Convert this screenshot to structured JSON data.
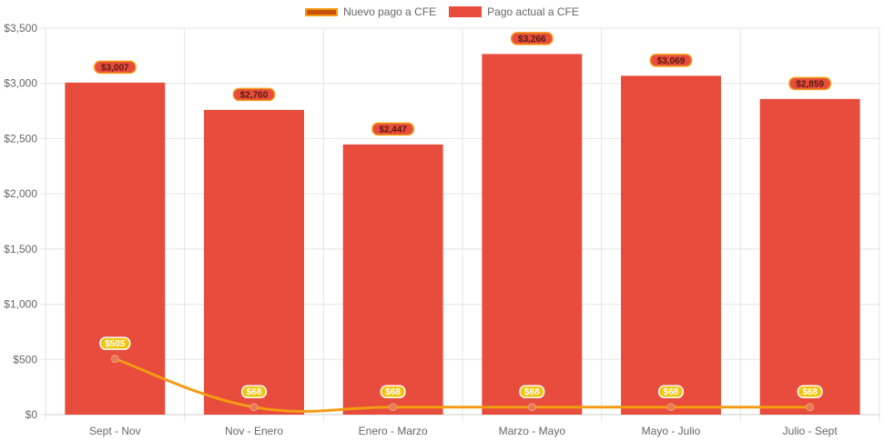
{
  "chart_data": {
    "type": "bar",
    "categories": [
      "Sept - Nov",
      "Nov - Enero",
      "Enero - Marzo",
      "Marzo - Mayo",
      "Mayo - Julio",
      "Julio - Sept"
    ],
    "ylim": [
      0,
      3500
    ],
    "yticks": [
      0,
      500,
      1000,
      1500,
      2000,
      2500,
      3000,
      3500
    ],
    "ytick_labels": [
      "$0",
      "$500",
      "$1,000",
      "$1,500",
      "$2,000",
      "$2,500",
      "$3,000",
      "$3,500"
    ],
    "series": [
      {
        "name": "Pago actual a CFE",
        "type": "bar",
        "color": "#e74c3c",
        "values": [
          3007,
          2760,
          2447,
          3266,
          3069,
          2859
        ],
        "labels": [
          "$3,007",
          "$2,760",
          "$2,447",
          "$3,266",
          "$3,069",
          "$2,859"
        ]
      },
      {
        "name": "Nuevo pago a CFE",
        "type": "line",
        "color": "#f39c12",
        "values": [
          505,
          68,
          68,
          68,
          68,
          68
        ],
        "labels": [
          "$505",
          "$68",
          "$68",
          "$68",
          "$68",
          "$68"
        ]
      }
    ],
    "legend": {
      "position": "top",
      "items": [
        "Nuevo pago a CFE",
        "Pago actual a CFE"
      ]
    },
    "grid": true
  }
}
